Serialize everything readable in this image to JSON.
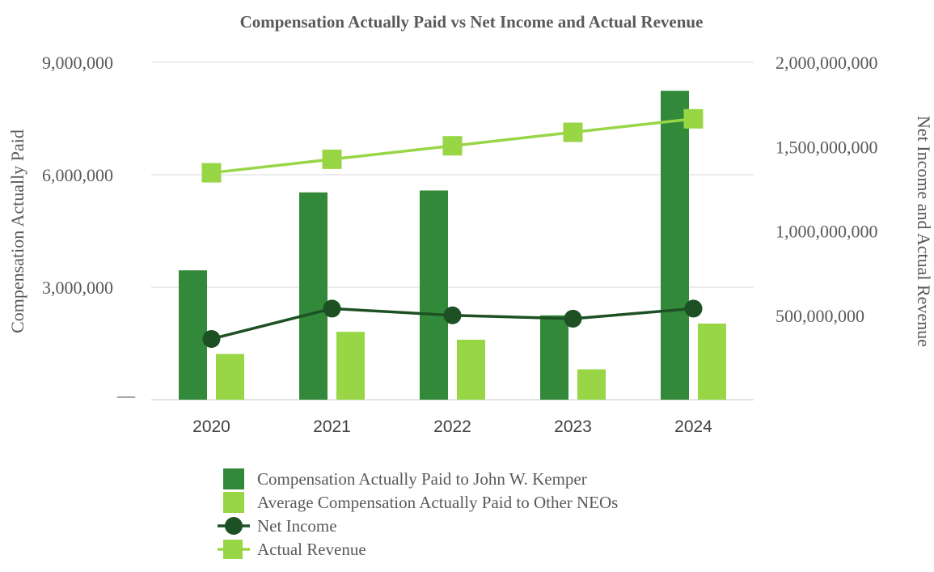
{
  "chart_data": {
    "type": "bar",
    "title": "Compensation Actually Paid vs Net Income and Actual Revenue",
    "categories": [
      "2020",
      "2021",
      "2022",
      "2023",
      "2024"
    ],
    "ylabel_left": "Compensation Actually Paid",
    "ylabel_right": "Net Income and  Actual Revenue",
    "ylim_left": [
      0,
      9000000
    ],
    "ylim_right": [
      0,
      2000000000
    ],
    "left_ticks": [
      {
        "value": 0,
        "label": "—"
      },
      {
        "value": 3000000,
        "label": "3,000,000"
      },
      {
        "value": 6000000,
        "label": "6,000,000"
      },
      {
        "value": 9000000,
        "label": "9,000,000"
      }
    ],
    "right_ticks": [
      {
        "value": 500000000,
        "label": "500,000,000"
      },
      {
        "value": 1000000000,
        "label": "1,000,000,000"
      },
      {
        "value": 1500000000,
        "label": "1,500,000,000"
      },
      {
        "value": 2000000000,
        "label": "2,000,000,000"
      }
    ],
    "grid": true,
    "legend_position": "bottom",
    "series": [
      {
        "name": "Compensation Actually Paid to John W. Kemper",
        "kind": "bar",
        "axis": "left",
        "color": "#33893a",
        "values": [
          3450000,
          5530000,
          5580000,
          2250000,
          8240000
        ]
      },
      {
        "name": "Average  Compensation Actually Paid to Other NEOs",
        "kind": "bar",
        "axis": "left",
        "color": "#98d645",
        "values": [
          1220000,
          1810000,
          1600000,
          810000,
          2030000
        ]
      },
      {
        "name": "Net Income",
        "kind": "line",
        "axis": "right",
        "color": "#1d5124",
        "marker": "circle",
        "values": [
          360000000,
          540000000,
          500000000,
          480000000,
          540000000
        ]
      },
      {
        "name": "Actual Revenue",
        "kind": "line",
        "axis": "right",
        "color": "#98d645",
        "marker": "square",
        "values": [
          1345000000,
          1425000000,
          1505000000,
          1585000000,
          1665000000
        ]
      }
    ]
  }
}
